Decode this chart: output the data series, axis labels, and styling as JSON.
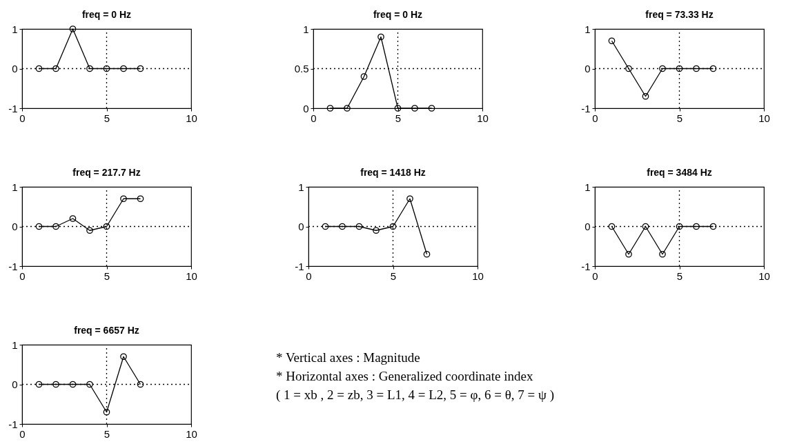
{
  "chart_data": [
    {
      "type": "line",
      "title": "freq = 0 Hz",
      "x": [
        1,
        2,
        3,
        4,
        5,
        6,
        7
      ],
      "values": [
        0,
        0,
        1,
        0,
        0,
        0,
        0
      ],
      "color": "#000000",
      "marker": "circle",
      "xlim": [
        0,
        10
      ],
      "xticks": [
        0,
        5,
        10
      ],
      "ylim": [
        -1,
        1
      ],
      "yticks": [
        -1,
        0,
        1
      ],
      "ref_lines": [
        {
          "axis": "x",
          "value": 5,
          "line_style": "dotted"
        },
        {
          "axis": "y",
          "value": 0,
          "line_style": "dotted"
        }
      ]
    },
    {
      "type": "line",
      "title": "freq = 0 Hz",
      "x": [
        1,
        2,
        3,
        4,
        5,
        6,
        7
      ],
      "values": [
        0,
        0,
        0.4,
        0.9,
        0,
        0,
        0
      ],
      "color": "#000000",
      "marker": "circle",
      "xlim": [
        0,
        10
      ],
      "xticks": [
        0,
        5,
        10
      ],
      "ylim": [
        0,
        1
      ],
      "yticks": [
        0,
        0.5,
        1
      ],
      "ref_lines": [
        {
          "axis": "x",
          "value": 5,
          "line_style": "dotted"
        },
        {
          "axis": "y",
          "value": 0.5,
          "line_style": "dotted"
        }
      ]
    },
    {
      "type": "line",
      "title": "freq = 73.33 Hz",
      "x": [
        1,
        2,
        3,
        4,
        5,
        6,
        7
      ],
      "values": [
        0.7,
        0,
        -0.7,
        0,
        0,
        0,
        0
      ],
      "color": "#000000",
      "marker": "circle",
      "xlim": [
        0,
        10
      ],
      "xticks": [
        0,
        5,
        10
      ],
      "ylim": [
        -1,
        1
      ],
      "yticks": [
        -1,
        0,
        1
      ],
      "ref_lines": [
        {
          "axis": "x",
          "value": 5,
          "line_style": "dotted"
        },
        {
          "axis": "y",
          "value": 0,
          "line_style": "dotted"
        }
      ]
    },
    {
      "type": "line",
      "title": "freq = 217.7 Hz",
      "x": [
        1,
        2,
        3,
        4,
        5,
        6,
        7
      ],
      "values": [
        0,
        0,
        0.2,
        -0.1,
        0,
        0.7,
        0.7
      ],
      "color": "#000000",
      "marker": "circle",
      "xlim": [
        0,
        10
      ],
      "xticks": [
        0,
        5,
        10
      ],
      "ylim": [
        -1,
        1
      ],
      "yticks": [
        -1,
        0,
        1
      ],
      "ref_lines": [
        {
          "axis": "x",
          "value": 5,
          "line_style": "dotted"
        },
        {
          "axis": "y",
          "value": 0,
          "line_style": "dotted"
        }
      ]
    },
    {
      "type": "line",
      "title": "freq = 1418 Hz",
      "x": [
        1,
        2,
        3,
        4,
        5,
        6,
        7
      ],
      "values": [
        0,
        0,
        0,
        -0.1,
        0,
        0.7,
        -0.7
      ],
      "color": "#000000",
      "marker": "circle",
      "xlim": [
        0,
        10
      ],
      "xticks": [
        0,
        5,
        10
      ],
      "ylim": [
        -1,
        1
      ],
      "yticks": [
        -1,
        0,
        1
      ],
      "ref_lines": [
        {
          "axis": "x",
          "value": 5,
          "line_style": "dotted"
        },
        {
          "axis": "y",
          "value": 0,
          "line_style": "dotted"
        }
      ]
    },
    {
      "type": "line",
      "title": "freq = 3484 Hz",
      "x": [
        1,
        2,
        3,
        4,
        5,
        6,
        7
      ],
      "values": [
        0,
        -0.7,
        0,
        -0.7,
        0,
        0,
        0
      ],
      "color": "#000000",
      "marker": "circle",
      "xlim": [
        0,
        10
      ],
      "xticks": [
        0,
        5,
        10
      ],
      "ylim": [
        -1,
        1
      ],
      "yticks": [
        -1,
        0,
        1
      ],
      "ref_lines": [
        {
          "axis": "x",
          "value": 5,
          "line_style": "dotted"
        },
        {
          "axis": "y",
          "value": 0,
          "line_style": "dotted"
        }
      ]
    },
    {
      "type": "line",
      "title": "freq = 6657 Hz",
      "x": [
        1,
        2,
        3,
        4,
        5,
        6,
        7
      ],
      "values": [
        0,
        0,
        0,
        0,
        -0.7,
        0.7,
        0
      ],
      "color": "#000000",
      "marker": "circle",
      "xlim": [
        0,
        10
      ],
      "xticks": [
        0,
        5,
        10
      ],
      "ylim": [
        -1,
        1
      ],
      "yticks": [
        -1,
        0,
        1
      ],
      "ref_lines": [
        {
          "axis": "x",
          "value": 5,
          "line_style": "dotted"
        },
        {
          "axis": "y",
          "value": 0,
          "line_style": "dotted"
        }
      ]
    },
    {
      "type": "other",
      "annotations": [
        "* Vertical axes : Magnitude",
        "* Horizontal axes : Generalized coordinate index",
        "( 1 = xb ,  2 = zb,  3 = L1,  4 = L2,  5 = φ,  6 = θ,  7 = ψ )"
      ]
    }
  ]
}
